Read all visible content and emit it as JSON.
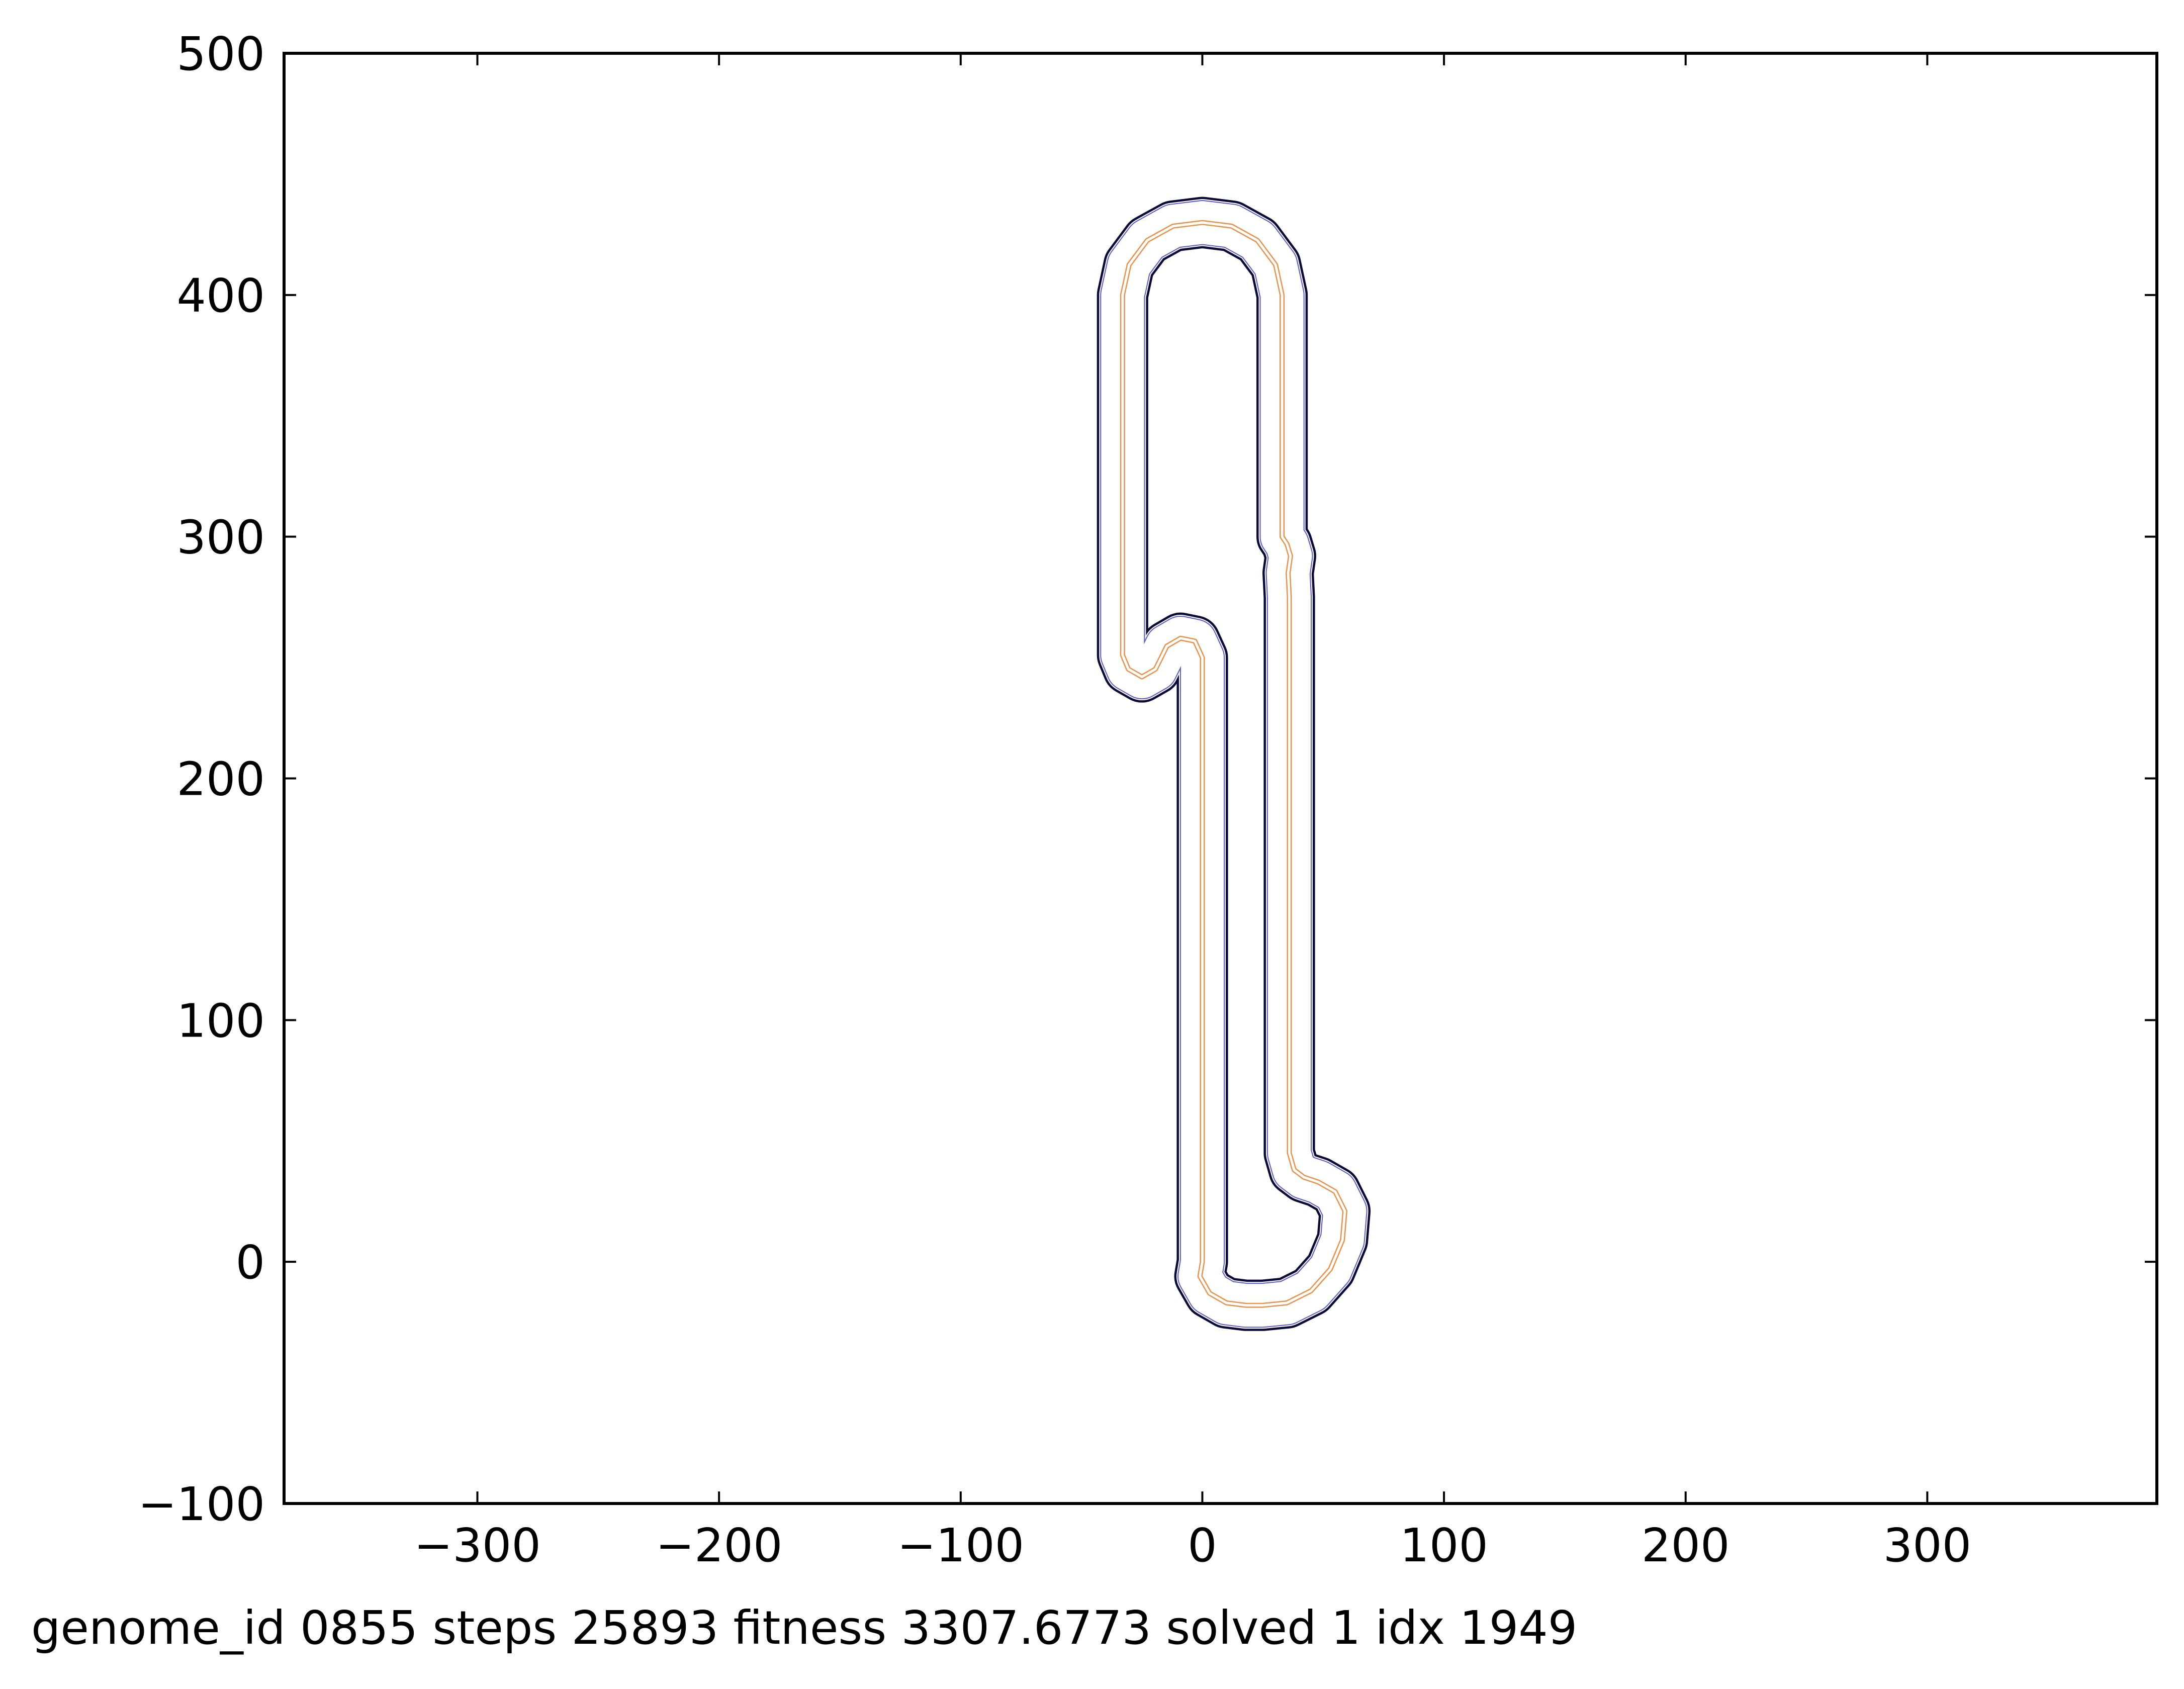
{
  "chart_data": {
    "type": "line",
    "title": "",
    "xlabel": "",
    "ylabel": "",
    "xlim": [
      -380,
      395
    ],
    "ylim": [
      -100,
      500
    ],
    "xticks": [
      -300,
      -200,
      -100,
      0,
      100,
      200,
      300
    ],
    "yticks": [
      -100,
      0,
      100,
      200,
      300,
      400,
      500
    ],
    "xtick_labels": [
      "−300",
      "−200",
      "−100",
      "0",
      "100",
      "200",
      "300"
    ],
    "ytick_labels": [
      "−100",
      "0",
      "100",
      "200",
      "300",
      "400",
      "500"
    ],
    "grid": false,
    "track_width": 20,
    "centerline": [
      [
        0,
        0
      ],
      [
        0,
        50
      ],
      [
        0,
        100
      ],
      [
        0,
        150
      ],
      [
        0,
        200
      ],
      [
        0,
        250
      ],
      [
        -3.1,
        256.8
      ],
      [
        -9,
        258
      ],
      [
        -14.7,
        254.7
      ],
      [
        -17,
        250
      ],
      [
        -19.4,
        245.2
      ],
      [
        -25,
        242
      ],
      [
        -30.6,
        245.2
      ],
      [
        -33,
        251
      ],
      [
        -33,
        300
      ],
      [
        -33,
        350
      ],
      [
        -33,
        400
      ],
      [
        -30.3,
        412.5
      ],
      [
        -22.8,
        422.6
      ],
      [
        -12.1,
        428.5
      ],
      [
        0,
        430
      ],
      [
        12.1,
        428.5
      ],
      [
        22.8,
        422.6
      ],
      [
        30.3,
        412.5
      ],
      [
        33,
        400
      ],
      [
        33,
        350
      ],
      [
        33,
        300
      ],
      [
        35,
        297
      ],
      [
        36.5,
        292
      ],
      [
        35.5,
        285
      ],
      [
        36,
        275
      ],
      [
        36,
        200
      ],
      [
        36,
        100
      ],
      [
        36,
        45
      ],
      [
        38,
        38
      ],
      [
        42,
        35
      ],
      [
        48,
        33
      ],
      [
        55,
        29
      ],
      [
        59,
        21
      ],
      [
        58,
        9
      ],
      [
        53,
        -3
      ],
      [
        45,
        -12
      ],
      [
        35,
        -17
      ],
      [
        25,
        -18
      ],
      [
        18,
        -18
      ],
      [
        10,
        -17
      ],
      [
        3,
        -13
      ],
      [
        -1,
        -6
      ],
      [
        0,
        0
      ]
    ],
    "line_colors": {
      "outer_edge": "#0b0b3a",
      "inner_edge": "#1a1a1a",
      "guide_blue": "#5a5acc",
      "guide_orange": "#e8914a"
    }
  },
  "caption": {
    "text": "genome_id 0855  steps 25893  fitness 3307.6773  solved 1  idx 1949"
  }
}
